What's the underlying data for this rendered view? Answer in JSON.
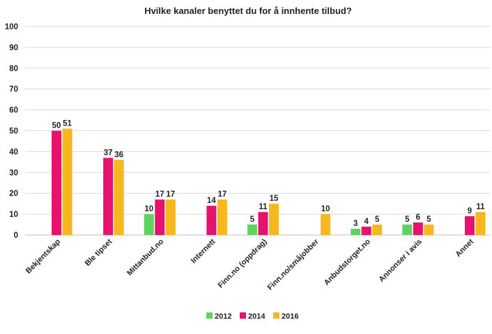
{
  "chart_data": {
    "type": "bar",
    "title": "Hvilke kanaler benyttet du for å innhente tilbud?",
    "xlabel": "",
    "ylabel": "",
    "ylim": [
      0,
      100
    ],
    "yticks": [
      0,
      10,
      20,
      30,
      40,
      50,
      60,
      70,
      80,
      90,
      100
    ],
    "grid": true,
    "legend_position": "bottom",
    "categories": [
      "Bekjentskap",
      "Ble tipset",
      "Mittanbud.no",
      "Internett",
      "Finn.no (oppdrag)",
      "Finn.no/småjobber",
      "Anbudstorget.no",
      "Annonser i avis",
      "Annet"
    ],
    "series": [
      {
        "name": "2012",
        "color": "#5fd35f",
        "values": [
          null,
          null,
          10,
          null,
          5,
          null,
          3,
          5,
          null
        ]
      },
      {
        "name": "2014",
        "color": "#e8126e",
        "values": [
          50,
          37,
          17,
          14,
          11,
          null,
          4,
          6,
          9
        ]
      },
      {
        "name": "2016",
        "color": "#f7b81e",
        "values": [
          51,
          36,
          17,
          17,
          15,
          10,
          5,
          5,
          11
        ]
      }
    ]
  }
}
